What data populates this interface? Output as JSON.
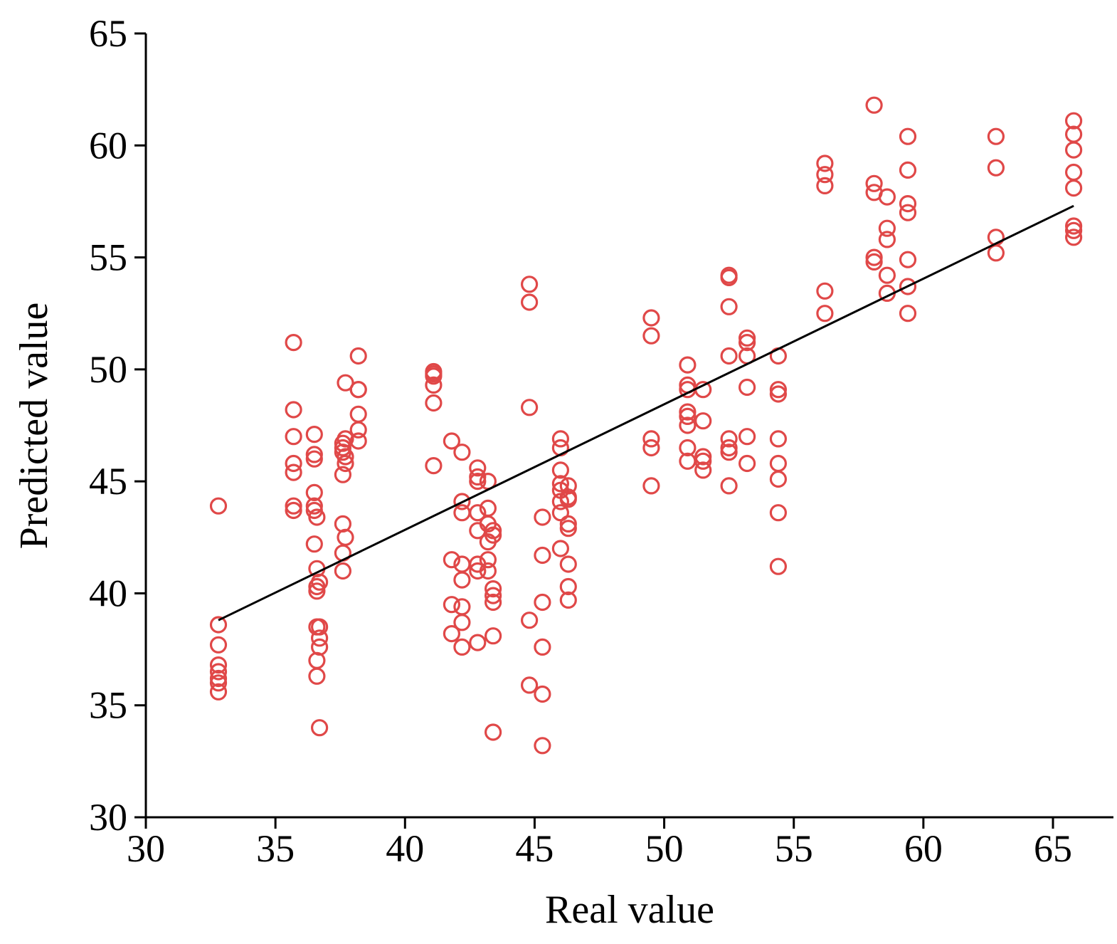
{
  "chart_data": {
    "type": "scatter",
    "title": "",
    "xlabel": "Real value",
    "ylabel": "Predicted value",
    "xlim": [
      30,
      67
    ],
    "ylim": [
      30,
      65
    ],
    "xticks": [
      30,
      35,
      40,
      45,
      50,
      55,
      60,
      65
    ],
    "yticks": [
      30,
      35,
      40,
      45,
      50,
      55,
      60,
      65
    ],
    "grid": false,
    "legend": "none",
    "colors": {
      "points": "#e04848",
      "fit_line": "#000000",
      "axes": "#000000"
    },
    "points": [
      {
        "x": 32.8,
        "y": 43.9
      },
      {
        "x": 32.8,
        "y": 38.6
      },
      {
        "x": 32.8,
        "y": 37.7
      },
      {
        "x": 32.8,
        "y": 36.8
      },
      {
        "x": 32.8,
        "y": 36.5
      },
      {
        "x": 32.8,
        "y": 36.2
      },
      {
        "x": 32.8,
        "y": 36.0
      },
      {
        "x": 32.8,
        "y": 35.6
      },
      {
        "x": 35.7,
        "y": 51.2
      },
      {
        "x": 35.7,
        "y": 48.2
      },
      {
        "x": 35.7,
        "y": 47.0
      },
      {
        "x": 35.7,
        "y": 45.8
      },
      {
        "x": 35.7,
        "y": 45.4
      },
      {
        "x": 35.7,
        "y": 43.9
      },
      {
        "x": 35.7,
        "y": 43.7
      },
      {
        "x": 36.5,
        "y": 47.1
      },
      {
        "x": 36.5,
        "y": 46.2
      },
      {
        "x": 36.5,
        "y": 46.0
      },
      {
        "x": 36.5,
        "y": 44.5
      },
      {
        "x": 36.5,
        "y": 43.9
      },
      {
        "x": 36.5,
        "y": 43.7
      },
      {
        "x": 36.5,
        "y": 42.2
      },
      {
        "x": 36.6,
        "y": 43.4
      },
      {
        "x": 36.6,
        "y": 41.1
      },
      {
        "x": 36.6,
        "y": 40.3
      },
      {
        "x": 36.6,
        "y": 40.1
      },
      {
        "x": 36.6,
        "y": 38.5
      },
      {
        "x": 36.6,
        "y": 37.0
      },
      {
        "x": 36.6,
        "y": 36.3
      },
      {
        "x": 36.7,
        "y": 40.5
      },
      {
        "x": 36.7,
        "y": 38.5
      },
      {
        "x": 36.7,
        "y": 38.0
      },
      {
        "x": 36.7,
        "y": 37.6
      },
      {
        "x": 36.7,
        "y": 34.0
      },
      {
        "x": 37.6,
        "y": 46.7
      },
      {
        "x": 37.6,
        "y": 46.5
      },
      {
        "x": 37.6,
        "y": 46.3
      },
      {
        "x": 37.6,
        "y": 45.3
      },
      {
        "x": 37.6,
        "y": 43.1
      },
      {
        "x": 37.6,
        "y": 41.8
      },
      {
        "x": 37.6,
        "y": 41.0
      },
      {
        "x": 37.7,
        "y": 49.4
      },
      {
        "x": 37.7,
        "y": 46.9
      },
      {
        "x": 37.7,
        "y": 46.1
      },
      {
        "x": 37.7,
        "y": 45.8
      },
      {
        "x": 37.7,
        "y": 42.5
      },
      {
        "x": 38.2,
        "y": 50.6
      },
      {
        "x": 38.2,
        "y": 49.1
      },
      {
        "x": 38.2,
        "y": 49.1
      },
      {
        "x": 38.2,
        "y": 48.0
      },
      {
        "x": 38.2,
        "y": 47.3
      },
      {
        "x": 38.2,
        "y": 46.8
      },
      {
        "x": 41.1,
        "y": 49.9
      },
      {
        "x": 41.1,
        "y": 49.8
      },
      {
        "x": 41.1,
        "y": 49.7
      },
      {
        "x": 41.1,
        "y": 49.3
      },
      {
        "x": 41.1,
        "y": 48.5
      },
      {
        "x": 41.1,
        "y": 45.7
      },
      {
        "x": 41.8,
        "y": 46.8
      },
      {
        "x": 41.8,
        "y": 41.5
      },
      {
        "x": 41.8,
        "y": 39.5
      },
      {
        "x": 41.8,
        "y": 38.2
      },
      {
        "x": 42.2,
        "y": 46.3
      },
      {
        "x": 42.2,
        "y": 44.1
      },
      {
        "x": 42.2,
        "y": 43.6
      },
      {
        "x": 42.2,
        "y": 41.3
      },
      {
        "x": 42.2,
        "y": 40.6
      },
      {
        "x": 42.2,
        "y": 39.4
      },
      {
        "x": 42.2,
        "y": 38.7
      },
      {
        "x": 42.2,
        "y": 37.6
      },
      {
        "x": 42.8,
        "y": 45.6
      },
      {
        "x": 42.8,
        "y": 45.2
      },
      {
        "x": 42.8,
        "y": 45.0
      },
      {
        "x": 42.8,
        "y": 43.6
      },
      {
        "x": 42.8,
        "y": 42.8
      },
      {
        "x": 42.8,
        "y": 41.3
      },
      {
        "x": 42.8,
        "y": 41.0
      },
      {
        "x": 42.8,
        "y": 37.8
      },
      {
        "x": 43.2,
        "y": 45.0
      },
      {
        "x": 43.2,
        "y": 43.8
      },
      {
        "x": 43.2,
        "y": 43.1
      },
      {
        "x": 43.2,
        "y": 42.3
      },
      {
        "x": 43.2,
        "y": 41.5
      },
      {
        "x": 43.2,
        "y": 41.0
      },
      {
        "x": 43.4,
        "y": 42.8
      },
      {
        "x": 43.4,
        "y": 42.6
      },
      {
        "x": 43.4,
        "y": 40.2
      },
      {
        "x": 43.4,
        "y": 39.9
      },
      {
        "x": 43.4,
        "y": 39.6
      },
      {
        "x": 43.4,
        "y": 38.1
      },
      {
        "x": 43.4,
        "y": 33.8
      },
      {
        "x": 44.8,
        "y": 53.8
      },
      {
        "x": 44.8,
        "y": 53.0
      },
      {
        "x": 44.8,
        "y": 48.3
      },
      {
        "x": 44.8,
        "y": 38.8
      },
      {
        "x": 44.8,
        "y": 35.9
      },
      {
        "x": 45.3,
        "y": 43.4
      },
      {
        "x": 45.3,
        "y": 41.7
      },
      {
        "x": 45.3,
        "y": 39.6
      },
      {
        "x": 45.3,
        "y": 37.6
      },
      {
        "x": 45.3,
        "y": 35.5
      },
      {
        "x": 45.3,
        "y": 33.2
      },
      {
        "x": 46.0,
        "y": 46.9
      },
      {
        "x": 46.0,
        "y": 46.5
      },
      {
        "x": 46.0,
        "y": 45.5
      },
      {
        "x": 46.0,
        "y": 44.9
      },
      {
        "x": 46.0,
        "y": 44.6
      },
      {
        "x": 46.0,
        "y": 44.1
      },
      {
        "x": 46.0,
        "y": 43.6
      },
      {
        "x": 46.0,
        "y": 42.0
      },
      {
        "x": 46.3,
        "y": 44.8
      },
      {
        "x": 46.3,
        "y": 44.3
      },
      {
        "x": 46.3,
        "y": 44.2
      },
      {
        "x": 46.3,
        "y": 43.1
      },
      {
        "x": 46.3,
        "y": 42.9
      },
      {
        "x": 46.3,
        "y": 41.3
      },
      {
        "x": 46.3,
        "y": 40.3
      },
      {
        "x": 46.3,
        "y": 39.7
      },
      {
        "x": 49.5,
        "y": 52.3
      },
      {
        "x": 49.5,
        "y": 51.5
      },
      {
        "x": 49.5,
        "y": 46.9
      },
      {
        "x": 49.5,
        "y": 46.5
      },
      {
        "x": 49.5,
        "y": 44.8
      },
      {
        "x": 50.9,
        "y": 50.2
      },
      {
        "x": 50.9,
        "y": 49.3
      },
      {
        "x": 50.9,
        "y": 49.1
      },
      {
        "x": 50.9,
        "y": 48.1
      },
      {
        "x": 50.9,
        "y": 47.9
      },
      {
        "x": 50.9,
        "y": 47.5
      },
      {
        "x": 50.9,
        "y": 46.5
      },
      {
        "x": 50.9,
        "y": 45.9
      },
      {
        "x": 51.5,
        "y": 49.1
      },
      {
        "x": 51.5,
        "y": 47.7
      },
      {
        "x": 51.5,
        "y": 46.1
      },
      {
        "x": 51.5,
        "y": 45.9
      },
      {
        "x": 51.5,
        "y": 45.5
      },
      {
        "x": 52.5,
        "y": 54.2
      },
      {
        "x": 52.5,
        "y": 54.1
      },
      {
        "x": 52.5,
        "y": 52.8
      },
      {
        "x": 52.5,
        "y": 50.6
      },
      {
        "x": 52.5,
        "y": 46.9
      },
      {
        "x": 52.5,
        "y": 46.5
      },
      {
        "x": 52.5,
        "y": 46.3
      },
      {
        "x": 52.5,
        "y": 44.8
      },
      {
        "x": 53.2,
        "y": 51.4
      },
      {
        "x": 53.2,
        "y": 51.2
      },
      {
        "x": 53.2,
        "y": 50.6
      },
      {
        "x": 53.2,
        "y": 49.2
      },
      {
        "x": 53.2,
        "y": 47.0
      },
      {
        "x": 53.2,
        "y": 45.8
      },
      {
        "x": 54.4,
        "y": 50.6
      },
      {
        "x": 54.4,
        "y": 49.1
      },
      {
        "x": 54.4,
        "y": 48.9
      },
      {
        "x": 54.4,
        "y": 46.9
      },
      {
        "x": 54.4,
        "y": 45.8
      },
      {
        "x": 54.4,
        "y": 45.1
      },
      {
        "x": 54.4,
        "y": 43.6
      },
      {
        "x": 54.4,
        "y": 41.2
      },
      {
        "x": 56.2,
        "y": 59.2
      },
      {
        "x": 56.2,
        "y": 58.7
      },
      {
        "x": 56.2,
        "y": 58.2
      },
      {
        "x": 56.2,
        "y": 53.5
      },
      {
        "x": 56.2,
        "y": 52.5
      },
      {
        "x": 58.1,
        "y": 61.8
      },
      {
        "x": 58.1,
        "y": 58.3
      },
      {
        "x": 58.1,
        "y": 57.9
      },
      {
        "x": 58.1,
        "y": 55.0
      },
      {
        "x": 58.1,
        "y": 54.8
      },
      {
        "x": 58.6,
        "y": 57.7
      },
      {
        "x": 58.6,
        "y": 56.3
      },
      {
        "x": 58.6,
        "y": 55.8
      },
      {
        "x": 58.6,
        "y": 54.2
      },
      {
        "x": 58.6,
        "y": 53.4
      },
      {
        "x": 59.4,
        "y": 60.4
      },
      {
        "x": 59.4,
        "y": 58.9
      },
      {
        "x": 59.4,
        "y": 57.4
      },
      {
        "x": 59.4,
        "y": 57.0
      },
      {
        "x": 59.4,
        "y": 54.9
      },
      {
        "x": 59.4,
        "y": 53.7
      },
      {
        "x": 59.4,
        "y": 52.5
      },
      {
        "x": 62.8,
        "y": 60.4
      },
      {
        "x": 62.8,
        "y": 59.0
      },
      {
        "x": 62.8,
        "y": 55.9
      },
      {
        "x": 62.8,
        "y": 55.2
      },
      {
        "x": 65.8,
        "y": 61.1
      },
      {
        "x": 65.8,
        "y": 60.5
      },
      {
        "x": 65.8,
        "y": 59.8
      },
      {
        "x": 65.8,
        "y": 58.8
      },
      {
        "x": 65.8,
        "y": 58.1
      },
      {
        "x": 65.8,
        "y": 56.4
      },
      {
        "x": 65.8,
        "y": 56.2
      },
      {
        "x": 65.8,
        "y": 55.9
      }
    ],
    "fit_line": {
      "x": [
        32.8,
        65.8
      ],
      "y": [
        38.8,
        57.3
      ]
    }
  }
}
